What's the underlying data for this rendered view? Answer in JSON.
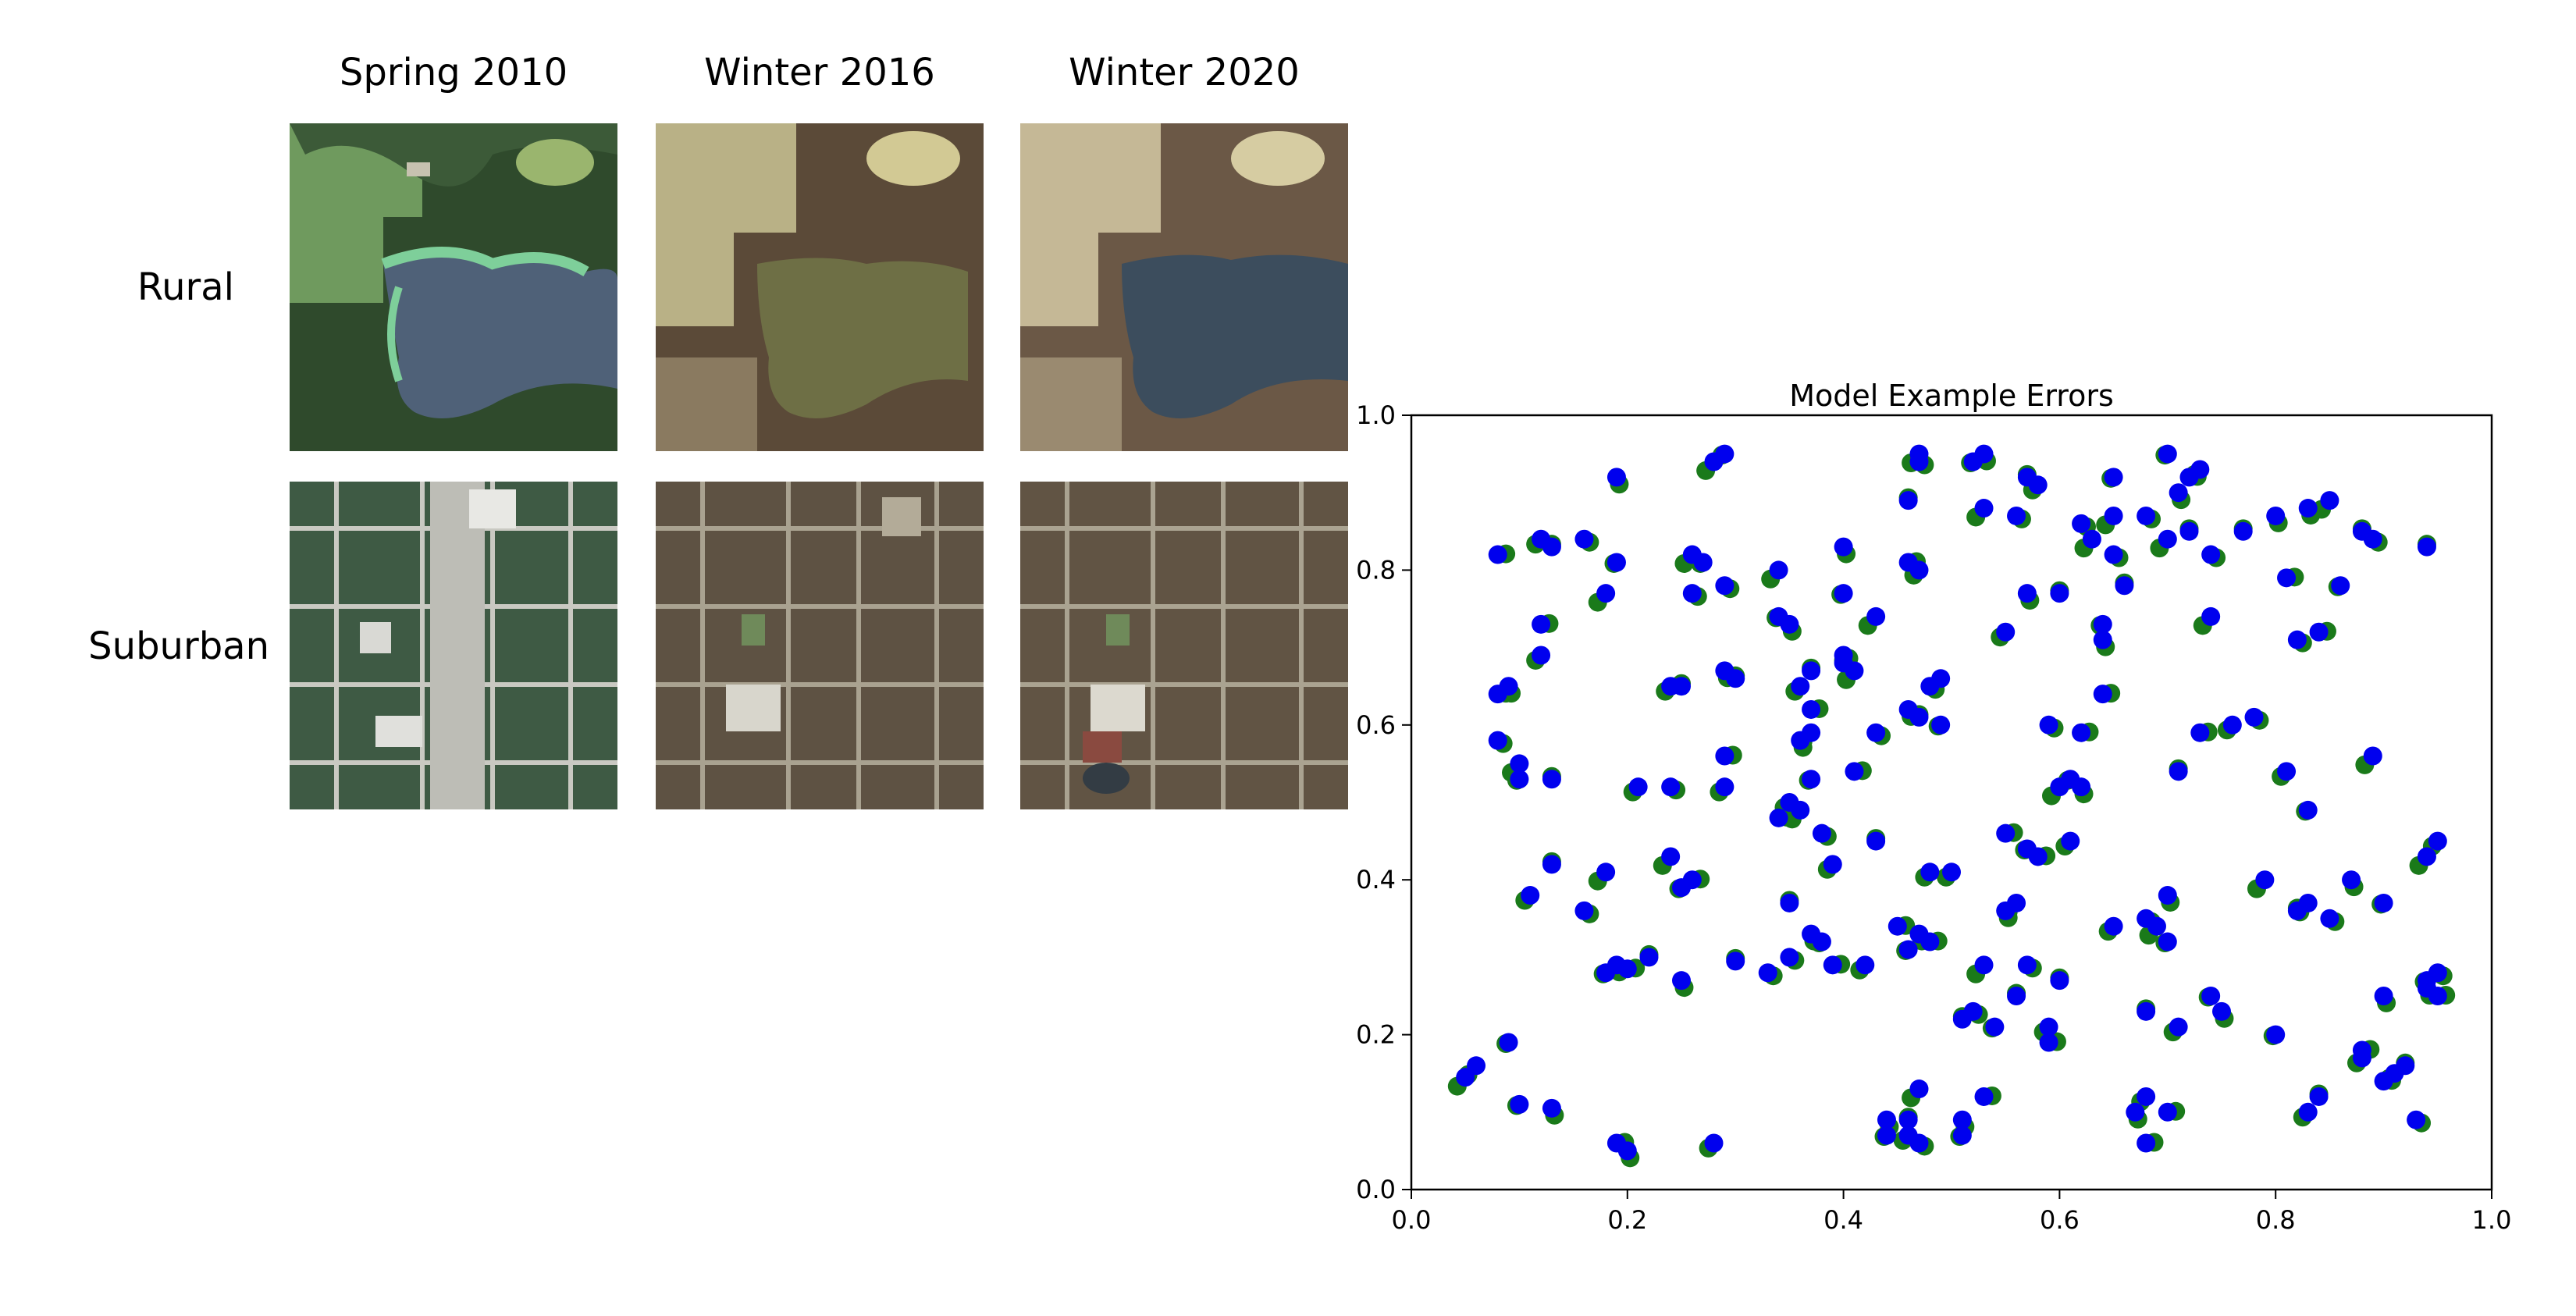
{
  "imagery_panel": {
    "columns": [
      "Spring 2010",
      "Winter 2016",
      "Winter 2020"
    ],
    "rows": [
      "Rural",
      "Suburban"
    ]
  },
  "chart_data": {
    "type": "scatter",
    "title": "Model Example Errors",
    "xlabel": "",
    "ylabel": "",
    "xlim": [
      0.0,
      1.0
    ],
    "ylim": [
      0.0,
      1.0
    ],
    "x_ticks": [
      "0.0",
      "0.2",
      "0.4",
      "0.6",
      "0.8",
      "1.0"
    ],
    "y_ticks": [
      "0.0",
      "0.2",
      "0.4",
      "0.6",
      "0.8",
      "1.0"
    ],
    "grid": false,
    "colors": {
      "ground_truth": "#1a7a1a",
      "prediction": "#0000ee"
    },
    "series": [
      {
        "points": [
          [
            0.05,
            0.145
          ],
          [
            0.1,
            0.11
          ],
          [
            0.13,
            0.105
          ],
          [
            0.08,
            0.82
          ],
          [
            0.12,
            0.84
          ],
          [
            0.13,
            0.83
          ],
          [
            0.16,
            0.84
          ],
          [
            0.18,
            0.77
          ],
          [
            0.19,
            0.81
          ],
          [
            0.19,
            0.92
          ],
          [
            0.12,
            0.73
          ],
          [
            0.12,
            0.69
          ],
          [
            0.13,
            0.53
          ],
          [
            0.08,
            0.58
          ],
          [
            0.1,
            0.55
          ],
          [
            0.1,
            0.53
          ],
          [
            0.09,
            0.65
          ],
          [
            0.08,
            0.64
          ],
          [
            0.11,
            0.38
          ],
          [
            0.13,
            0.42
          ],
          [
            0.16,
            0.36
          ],
          [
            0.18,
            0.41
          ],
          [
            0.18,
            0.28
          ],
          [
            0.19,
            0.29
          ],
          [
            0.2,
            0.285
          ],
          [
            0.21,
            0.52
          ],
          [
            0.22,
            0.3
          ],
          [
            0.24,
            0.52
          ],
          [
            0.24,
            0.43
          ],
          [
            0.25,
            0.39
          ],
          [
            0.25,
            0.27
          ],
          [
            0.26,
            0.4
          ],
          [
            0.24,
            0.65
          ],
          [
            0.25,
            0.65
          ],
          [
            0.26,
            0.77
          ],
          [
            0.26,
            0.82
          ],
          [
            0.27,
            0.81
          ],
          [
            0.29,
            0.67
          ],
          [
            0.29,
            0.56
          ],
          [
            0.29,
            0.52
          ],
          [
            0.3,
            0.66
          ],
          [
            0.29,
            0.78
          ],
          [
            0.28,
            0.94
          ],
          [
            0.29,
            0.95
          ],
          [
            0.2,
            0.05
          ],
          [
            0.19,
            0.06
          ],
          [
            0.28,
            0.06
          ],
          [
            0.3,
            0.295
          ],
          [
            0.33,
            0.28
          ],
          [
            0.34,
            0.8
          ],
          [
            0.34,
            0.74
          ],
          [
            0.35,
            0.73
          ],
          [
            0.34,
            0.48
          ],
          [
            0.35,
            0.5
          ],
          [
            0.35,
            0.37
          ],
          [
            0.35,
            0.3
          ],
          [
            0.36,
            0.49
          ],
          [
            0.37,
            0.53
          ],
          [
            0.36,
            0.58
          ],
          [
            0.37,
            0.62
          ],
          [
            0.36,
            0.65
          ],
          [
            0.37,
            0.67
          ],
          [
            0.38,
            0.46
          ],
          [
            0.37,
            0.59
          ],
          [
            0.38,
            0.32
          ],
          [
            0.37,
            0.33
          ],
          [
            0.39,
            0.29
          ],
          [
            0.39,
            0.42
          ],
          [
            0.4,
            0.68
          ],
          [
            0.4,
            0.69
          ],
          [
            0.41,
            0.67
          ],
          [
            0.4,
            0.77
          ],
          [
            0.4,
            0.83
          ],
          [
            0.41,
            0.54
          ],
          [
            0.42,
            0.29
          ],
          [
            0.43,
            0.45
          ],
          [
            0.43,
            0.59
          ],
          [
            0.43,
            0.74
          ],
          [
            0.44,
            0.07
          ],
          [
            0.44,
            0.09
          ],
          [
            0.45,
            0.34
          ],
          [
            0.46,
            0.07
          ],
          [
            0.46,
            0.09
          ],
          [
            0.47,
            0.06
          ],
          [
            0.47,
            0.13
          ],
          [
            0.46,
            0.31
          ],
          [
            0.47,
            0.33
          ],
          [
            0.48,
            0.32
          ],
          [
            0.48,
            0.41
          ],
          [
            0.47,
            0.61
          ],
          [
            0.48,
            0.65
          ],
          [
            0.49,
            0.66
          ],
          [
            0.49,
            0.6
          ],
          [
            0.46,
            0.62
          ],
          [
            0.46,
            0.81
          ],
          [
            0.47,
            0.8
          ],
          [
            0.46,
            0.89
          ],
          [
            0.47,
            0.94
          ],
          [
            0.47,
            0.95
          ],
          [
            0.51,
            0.07
          ],
          [
            0.51,
            0.09
          ],
          [
            0.53,
            0.12
          ],
          [
            0.5,
            0.41
          ],
          [
            0.51,
            0.22
          ],
          [
            0.52,
            0.23
          ],
          [
            0.53,
            0.29
          ],
          [
            0.54,
            0.21
          ],
          [
            0.55,
            0.36
          ],
          [
            0.55,
            0.46
          ],
          [
            0.55,
            0.72
          ],
          [
            0.56,
            0.25
          ],
          [
            0.57,
            0.29
          ],
          [
            0.56,
            0.37
          ],
          [
            0.57,
            0.44
          ],
          [
            0.57,
            0.77
          ],
          [
            0.58,
            0.43
          ],
          [
            0.58,
            0.91
          ],
          [
            0.57,
            0.92
          ],
          [
            0.56,
            0.87
          ],
          [
            0.53,
            0.88
          ],
          [
            0.52,
            0.94
          ],
          [
            0.53,
            0.95
          ],
          [
            0.59,
            0.19
          ],
          [
            0.59,
            0.21
          ],
          [
            0.6,
            0.27
          ],
          [
            0.59,
            0.6
          ],
          [
            0.6,
            0.52
          ],
          [
            0.61,
            0.53
          ],
          [
            0.62,
            0.52
          ],
          [
            0.62,
            0.59
          ],
          [
            0.61,
            0.45
          ],
          [
            0.6,
            0.77
          ],
          [
            0.62,
            0.86
          ],
          [
            0.63,
            0.84
          ],
          [
            0.64,
            0.73
          ],
          [
            0.64,
            0.71
          ],
          [
            0.64,
            0.64
          ],
          [
            0.65,
            0.34
          ],
          [
            0.66,
            0.78
          ],
          [
            0.65,
            0.82
          ],
          [
            0.65,
            0.87
          ],
          [
            0.65,
            0.92
          ],
          [
            0.67,
            0.1
          ],
          [
            0.68,
            0.06
          ],
          [
            0.68,
            0.12
          ],
          [
            0.68,
            0.23
          ],
          [
            0.68,
            0.35
          ],
          [
            0.69,
            0.34
          ],
          [
            0.7,
            0.32
          ],
          [
            0.7,
            0.38
          ],
          [
            0.7,
            0.1
          ],
          [
            0.71,
            0.21
          ],
          [
            0.71,
            0.54
          ],
          [
            0.68,
            0.87
          ],
          [
            0.7,
            0.84
          ],
          [
            0.7,
            0.95
          ],
          [
            0.71,
            0.9
          ],
          [
            0.72,
            0.92
          ],
          [
            0.73,
            0.93
          ],
          [
            0.72,
            0.85
          ],
          [
            0.74,
            0.82
          ],
          [
            0.74,
            0.74
          ],
          [
            0.74,
            0.25
          ],
          [
            0.75,
            0.23
          ],
          [
            0.73,
            0.59
          ],
          [
            0.76,
            0.6
          ],
          [
            0.77,
            0.85
          ],
          [
            0.78,
            0.61
          ],
          [
            0.79,
            0.4
          ],
          [
            0.8,
            0.2
          ],
          [
            0.8,
            0.87
          ],
          [
            0.81,
            0.79
          ],
          [
            0.81,
            0.54
          ],
          [
            0.82,
            0.36
          ],
          [
            0.82,
            0.71
          ],
          [
            0.83,
            0.37
          ],
          [
            0.83,
            0.49
          ],
          [
            0.83,
            0.88
          ],
          [
            0.84,
            0.72
          ],
          [
            0.83,
            0.1
          ],
          [
            0.84,
            0.12
          ],
          [
            0.85,
            0.35
          ],
          [
            0.85,
            0.89
          ],
          [
            0.86,
            0.78
          ],
          [
            0.87,
            0.4
          ],
          [
            0.88,
            0.18
          ],
          [
            0.88,
            0.17
          ],
          [
            0.88,
            0.85
          ],
          [
            0.89,
            0.84
          ],
          [
            0.89,
            0.56
          ],
          [
            0.9,
            0.37
          ],
          [
            0.9,
            0.25
          ],
          [
            0.9,
            0.14
          ],
          [
            0.91,
            0.15
          ],
          [
            0.92,
            0.16
          ],
          [
            0.93,
            0.09
          ],
          [
            0.94,
            0.43
          ],
          [
            0.94,
            0.27
          ],
          [
            0.94,
            0.26
          ],
          [
            0.95,
            0.25
          ],
          [
            0.95,
            0.45
          ],
          [
            0.94,
            0.83
          ],
          [
            0.95,
            0.28
          ],
          [
            0.06,
            0.16
          ],
          [
            0.09,
            0.19
          ]
        ]
      }
    ],
    "offset_hint": "green points slightly offset from blue predictions"
  }
}
